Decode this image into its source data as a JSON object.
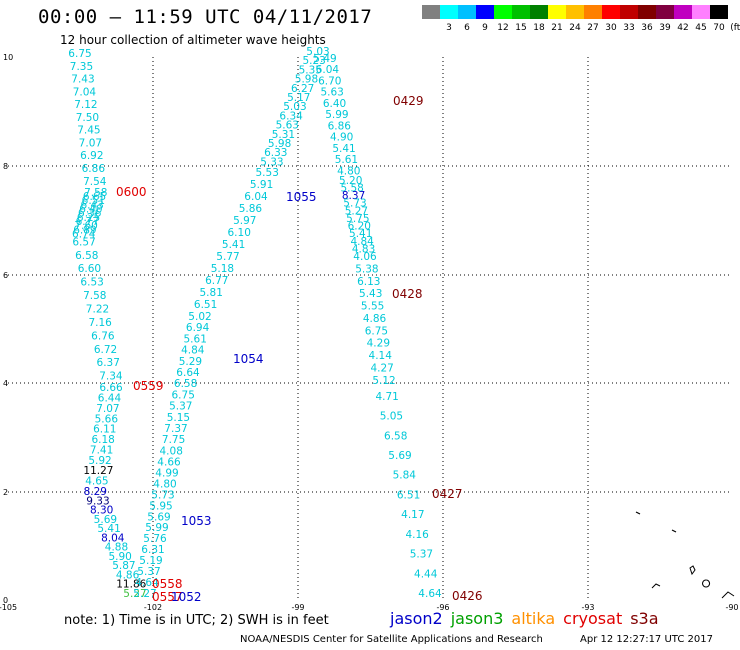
{
  "header": {
    "title": "00:00 – 11:59 UTC 04/11/2017",
    "subtitle": "12 hour collection of altimeter wave heights"
  },
  "legend": {
    "colors": [
      "#808080",
      "#00ffff",
      "#00c0ff",
      "#0000ff",
      "#00ff00",
      "#00c000",
      "#008000",
      "#ffff00",
      "#ffc000",
      "#ff8000",
      "#ff0000",
      "#c00000",
      "#800000",
      "#800040",
      "#c000c0",
      "#ff80ff",
      "#000000"
    ],
    "ticks": [
      "3",
      "6",
      "9",
      "12",
      "15",
      "18",
      "21",
      "24",
      "27",
      "30",
      "33",
      "36",
      "39",
      "42",
      "45",
      "70",
      "(ft)"
    ]
  },
  "axes": {
    "x_labels": [
      "-105",
      "-102",
      "-99",
      "-96",
      "-93",
      "-90"
    ],
    "y_labels": [
      "0",
      "2",
      "4",
      "6",
      "8",
      "10"
    ]
  },
  "colors": {
    "cyan": "#00c8d8",
    "blue": "#0000c8",
    "dark_blue": "#00007a",
    "red": "#e00000",
    "dark_red": "#800000",
    "green": "#40c040"
  },
  "tracks": [
    {
      "id": "left",
      "values": [
        "6.75",
        "7.35",
        "7.43",
        "7.04",
        "7.12",
        "7.50",
        "7.45",
        "7.07",
        "6.92",
        "6.86",
        "7.54",
        "7.58",
        "6.65",
        "6.51",
        "6.43",
        "6.40",
        "6.36",
        "6.25",
        "6.77",
        "7.60",
        "6.89",
        "6.74",
        "6.57",
        "6.58",
        "6.60",
        "6.53",
        "7.58",
        "7.22",
        "7.16",
        "6.76",
        "6.72",
        "6.37",
        "7.34",
        "6.66",
        "6.44",
        "7.07",
        "5.66",
        "6.11",
        "6.18",
        "7.41",
        "5.92",
        "11.27",
        "4.65",
        "8.29",
        "9.33",
        "8.30",
        "5.69",
        "5.41",
        "8.04",
        "4.88",
        "5.90",
        "5.87",
        "4.86",
        "11.86",
        "5.27"
      ]
    },
    {
      "id": "mid",
      "values": [
        "5.03",
        "5.23",
        "5.35",
        "5.98",
        "6.27",
        "5.17",
        "5.03",
        "6.34",
        "5.63",
        "5.31",
        "5.98",
        "6.33",
        "5.33",
        "5.53",
        "5.91",
        "6.04",
        "5.86",
        "5.97",
        "6.10",
        "5.41",
        "5.77",
        "5.18",
        "6.77",
        "5.81",
        "6.51",
        "5.02",
        "6.94",
        "5.61",
        "4.84",
        "5.29",
        "6.64",
        "6.58",
        "6.75",
        "5.37",
        "5.15",
        "7.37",
        "7.75",
        "4.08",
        "4.66",
        "4.99",
        "4.80",
        "5.73",
        "5.95",
        "5.69",
        "5.99",
        "5.76",
        "6.31",
        "5.19",
        "5.37",
        "4.64",
        "5.27"
      ]
    },
    {
      "id": "right",
      "values": [
        "5.49",
        "6.04",
        "6.70",
        "5.63",
        "6.40",
        "5.99",
        "6.86",
        "4.90",
        "5.41",
        "5.61",
        "4.80",
        "5.20",
        "5.58",
        "8.37",
        "5.73",
        "5.27",
        "5.75",
        "6.20",
        "5.41",
        "4.84",
        "4.83",
        "4.06",
        "5.38",
        "6.13",
        "5.43",
        "5.55",
        "4.86",
        "6.75",
        "4.29",
        "4.14",
        "4.27",
        "5.12",
        "4.71",
        "5.05",
        "6.58",
        "5.69",
        "5.84",
        "6.51",
        "4.17",
        "4.16",
        "5.37",
        "4.44",
        "4.64"
      ]
    }
  ],
  "time_labels": [
    {
      "text": "0600",
      "color": "#e00000"
    },
    {
      "text": "0559",
      "color": "#e00000"
    },
    {
      "text": "0558",
      "color": "#e00000"
    },
    {
      "text": "0557",
      "color": "#e00000"
    },
    {
      "text": "1055",
      "color": "#0000c8"
    },
    {
      "text": "1054",
      "color": "#0000c8"
    },
    {
      "text": "1053",
      "color": "#0000c8"
    },
    {
      "text": "1052",
      "color": "#0000c8"
    },
    {
      "text": "0429",
      "color": "#800000"
    },
    {
      "text": "0428",
      "color": "#800000"
    },
    {
      "text": "0427",
      "color": "#800000"
    },
    {
      "text": "0426",
      "color": "#800000"
    }
  ],
  "footer": {
    "note": "note:  1) Time is in UTC;  2) SWH is in feet",
    "satellites": [
      {
        "name": "jason2",
        "color": "#0000c8"
      },
      {
        "name": "jason3",
        "color": "#00a000"
      },
      {
        "name": "altika",
        "color": "#ff9000"
      },
      {
        "name": "cryosat",
        "color": "#e00000"
      },
      {
        "name": "s3a",
        "color": "#800000"
      }
    ],
    "credit": "NOAA/NESDIS Center for Satellite Applications and Research",
    "timestamp": "Apr 12 12:27:17 UTC 2017"
  }
}
